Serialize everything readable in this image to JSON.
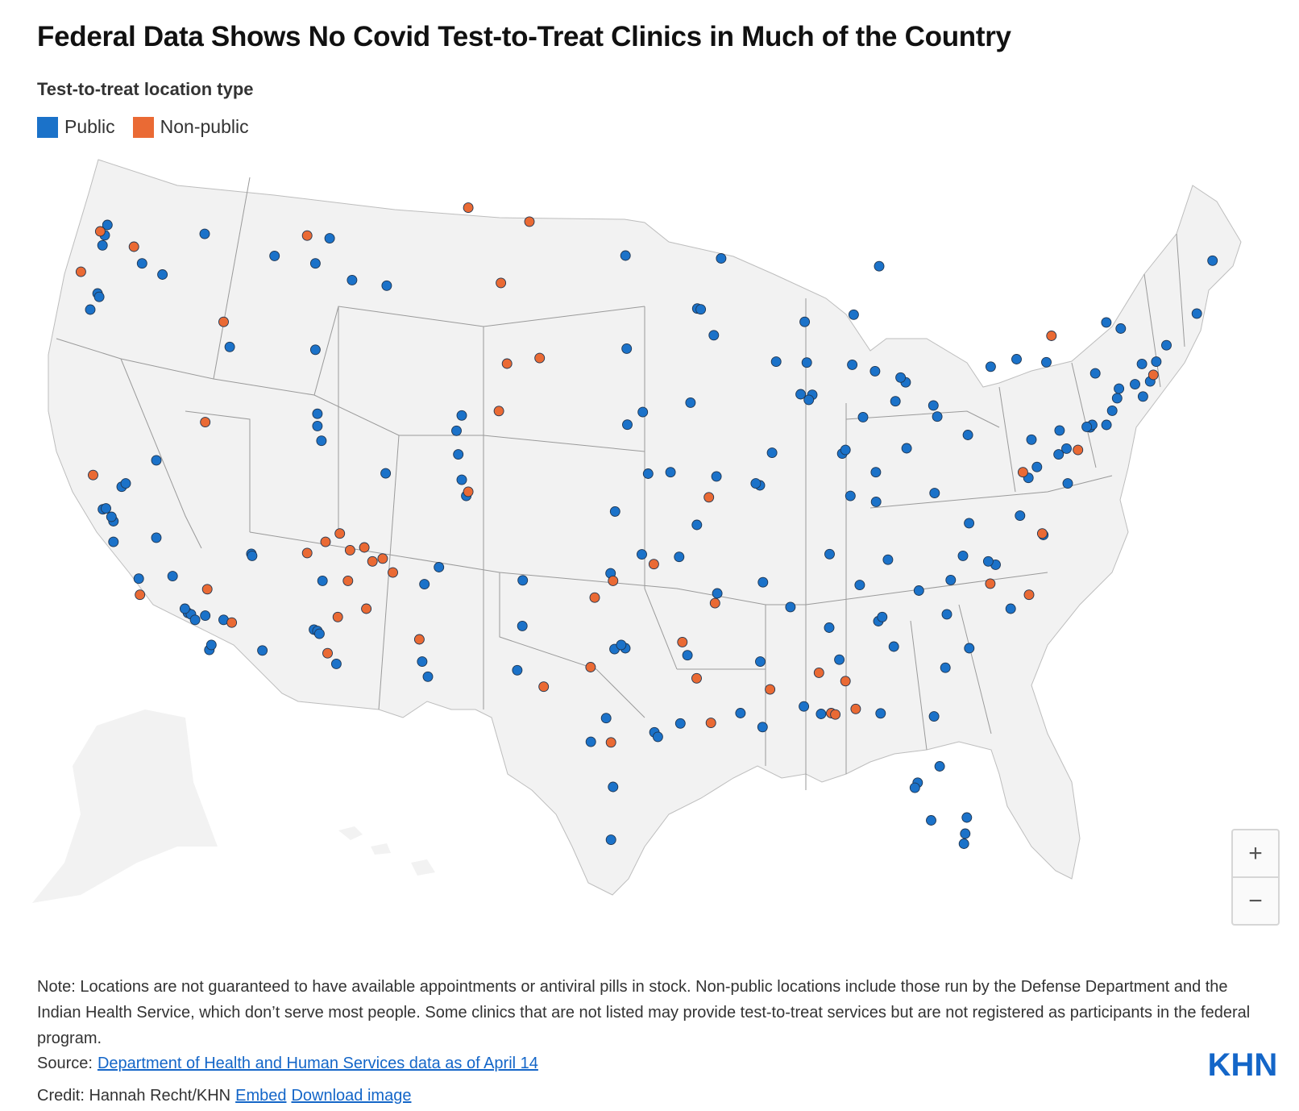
{
  "title": "Federal Data Shows No Covid Test-to-Treat Clinics in Much of the Country",
  "legend": {
    "heading": "Test-to-treat location type",
    "items": [
      {
        "label": "Public",
        "color": "#1b72c9"
      },
      {
        "label": "Non-public",
        "color": "#ea6a34"
      }
    ]
  },
  "zoom": {
    "in_label": "+",
    "out_label": "−"
  },
  "note": "Note: Locations are not guaranteed to have available appointments or antiviral pills in stock. Non-public locations include those run by the Defense Department and the Indian Health Service, which don’t serve most people. Some clinics that are not listed may provide test-to-treat services but are not registered as participants in the federal program.",
  "source": {
    "label": "Source:",
    "link_text": "Department of Health and Human Services data as of April 14"
  },
  "credit": {
    "label": "Credit: Hannah Recht/KHN",
    "embed_text": "Embed",
    "download_text": "Download image"
  },
  "logo_text": "KHN",
  "colors": {
    "public": "#1b72c9",
    "non_public": "#ea6a34",
    "land": "#f2f2f2",
    "border": "#9a9a9a"
  },
  "chart_data": {
    "type": "scatter",
    "title": "Federal Data Shows No Covid Test-to-Treat Clinics in Much of the Country",
    "subtitle": "Test-to-treat location type",
    "series": [
      {
        "name": "Public",
        "color": "#1b72c9",
        "points": [
          {
            "lon": -122.33,
            "lat": 47.61
          },
          {
            "lon": -122.44,
            "lat": 47.25
          },
          {
            "lon": -122.2,
            "lat": 47.98
          },
          {
            "lon": -122.68,
            "lat": 45.52
          },
          {
            "lon": -122.6,
            "lat": 45.4
          },
          {
            "lon": -123.04,
            "lat": 44.94
          },
          {
            "lon": -117.43,
            "lat": 47.66
          },
          {
            "lon": -119.5,
            "lat": 46.2
          },
          {
            "lon": -120.5,
            "lat": 46.6
          },
          {
            "lon": -116.2,
            "lat": 43.6
          },
          {
            "lon": -112.0,
            "lat": 43.5
          },
          {
            "lon": -111.9,
            "lat": 40.76
          },
          {
            "lon": -111.7,
            "lat": 40.23
          },
          {
            "lon": -111.9,
            "lat": 41.2
          },
          {
            "lon": -112.0,
            "lat": 46.6
          },
          {
            "lon": -108.5,
            "lat": 45.8
          },
          {
            "lon": -114.0,
            "lat": 46.87
          },
          {
            "lon": -111.3,
            "lat": 47.5
          },
          {
            "lon": -110.2,
            "lat": 46.0
          },
          {
            "lon": -122.42,
            "lat": 37.77
          },
          {
            "lon": -122.27,
            "lat": 37.8
          },
          {
            "lon": -121.9,
            "lat": 37.34
          },
          {
            "lon": -122.0,
            "lat": 37.5
          },
          {
            "lon": -121.5,
            "lat": 38.58
          },
          {
            "lon": -121.3,
            "lat": 38.7
          },
          {
            "lon": -119.8,
            "lat": 36.75
          },
          {
            "lon": -119.0,
            "lat": 35.37
          },
          {
            "lon": -118.25,
            "lat": 34.05
          },
          {
            "lon": -118.1,
            "lat": 34.0
          },
          {
            "lon": -117.9,
            "lat": 33.8
          },
          {
            "lon": -118.4,
            "lat": 34.2
          },
          {
            "lon": -117.4,
            "lat": 33.95
          },
          {
            "lon": -117.2,
            "lat": 32.72
          },
          {
            "lon": -117.1,
            "lat": 32.9
          },
          {
            "lon": -116.5,
            "lat": 33.8
          },
          {
            "lon": -120.66,
            "lat": 35.28
          },
          {
            "lon": -121.9,
            "lat": 36.6
          },
          {
            "lon": -119.8,
            "lat": 39.53
          },
          {
            "lon": -115.14,
            "lat": 36.17
          },
          {
            "lon": -115.1,
            "lat": 36.1
          },
          {
            "lon": -112.07,
            "lat": 33.45
          },
          {
            "lon": -111.9,
            "lat": 33.4
          },
          {
            "lon": -111.8,
            "lat": 33.3
          },
          {
            "lon": -110.97,
            "lat": 32.22
          },
          {
            "lon": -114.6,
            "lat": 32.7
          },
          {
            "lon": -111.65,
            "lat": 35.2
          },
          {
            "lon": -106.65,
            "lat": 35.08
          },
          {
            "lon": -105.94,
            "lat": 35.69
          },
          {
            "lon": -106.76,
            "lat": 32.3
          },
          {
            "lon": -104.99,
            "lat": 39.74
          },
          {
            "lon": -104.82,
            "lat": 38.83
          },
          {
            "lon": -105.08,
            "lat": 40.59
          },
          {
            "lon": -104.6,
            "lat": 38.25
          },
          {
            "lon": -108.55,
            "lat": 39.06
          },
          {
            "lon": -104.82,
            "lat": 41.14
          },
          {
            "lon": -106.48,
            "lat": 31.76
          },
          {
            "lon": -101.85,
            "lat": 33.58
          },
          {
            "lon": -101.83,
            "lat": 35.22
          },
          {
            "lon": -102.1,
            "lat": 31.99
          },
          {
            "lon": -97.33,
            "lat": 32.75
          },
          {
            "lon": -96.8,
            "lat": 32.78
          },
          {
            "lon": -97.0,
            "lat": 32.9
          },
          {
            "lon": -97.74,
            "lat": 30.27
          },
          {
            "lon": -98.49,
            "lat": 29.42
          },
          {
            "lon": -95.37,
            "lat": 29.76
          },
          {
            "lon": -95.2,
            "lat": 29.6
          },
          {
            "lon": -97.4,
            "lat": 27.8
          },
          {
            "lon": -97.5,
            "lat": 25.9
          },
          {
            "lon": -94.1,
            "lat": 30.08
          },
          {
            "lon": -97.52,
            "lat": 35.47
          },
          {
            "lon": -95.99,
            "lat": 36.15
          },
          {
            "lon": -97.3,
            "lat": 37.69
          },
          {
            "lon": -95.68,
            "lat": 39.05
          },
          {
            "lon": -94.58,
            "lat": 39.1
          },
          {
            "lon": -96.7,
            "lat": 40.81
          },
          {
            "lon": -95.94,
            "lat": 41.26
          },
          {
            "lon": -93.6,
            "lat": 41.6
          },
          {
            "lon": -96.73,
            "lat": 43.54
          },
          {
            "lon": -96.79,
            "lat": 46.88
          },
          {
            "lon": -93.27,
            "lat": 44.98
          },
          {
            "lon": -93.1,
            "lat": 44.95
          },
          {
            "lon": -92.1,
            "lat": 46.78
          },
          {
            "lon": -92.46,
            "lat": 44.02
          },
          {
            "lon": -87.9,
            "lat": 43.04
          },
          {
            "lon": -89.4,
            "lat": 43.07
          },
          {
            "lon": -88.0,
            "lat": 44.5
          },
          {
            "lon": -87.63,
            "lat": 41.88
          },
          {
            "lon": -87.8,
            "lat": 41.7
          },
          {
            "lon": -88.2,
            "lat": 41.9
          },
          {
            "lon": -89.6,
            "lat": 39.8
          },
          {
            "lon": -90.2,
            "lat": 38.63
          },
          {
            "lon": -90.4,
            "lat": 38.7
          },
          {
            "lon": -92.33,
            "lat": 38.95
          },
          {
            "lon": -93.29,
            "lat": 37.21
          },
          {
            "lon": -86.16,
            "lat": 39.77
          },
          {
            "lon": -86.0,
            "lat": 39.9
          },
          {
            "lon": -85.14,
            "lat": 41.08
          },
          {
            "lon": -84.51,
            "lat": 39.1
          },
          {
            "lon": -83.0,
            "lat": 39.96
          },
          {
            "lon": -81.69,
            "lat": 41.5
          },
          {
            "lon": -81.5,
            "lat": 41.1
          },
          {
            "lon": -83.55,
            "lat": 41.65
          },
          {
            "lon": -83.05,
            "lat": 42.33
          },
          {
            "lon": -83.3,
            "lat": 42.5
          },
          {
            "lon": -85.67,
            "lat": 42.96
          },
          {
            "lon": -84.55,
            "lat": 42.73
          },
          {
            "lon": -84.35,
            "lat": 46.5
          },
          {
            "lon": -85.6,
            "lat": 44.76
          },
          {
            "lon": -80.0,
            "lat": 40.44
          },
          {
            "lon": -85.76,
            "lat": 38.25
          },
          {
            "lon": -84.5,
            "lat": 38.04
          },
          {
            "lon": -86.78,
            "lat": 36.16
          },
          {
            "lon": -83.92,
            "lat": 35.96
          },
          {
            "lon": -85.3,
            "lat": 35.05
          },
          {
            "lon": -90.05,
            "lat": 35.15
          },
          {
            "lon": -92.29,
            "lat": 34.75
          },
          {
            "lon": -94.16,
            "lat": 36.06
          },
          {
            "lon": -90.18,
            "lat": 32.3
          },
          {
            "lon": -88.7,
            "lat": 34.26
          },
          {
            "lon": -86.8,
            "lat": 33.52
          },
          {
            "lon": -86.3,
            "lat": 32.37
          },
          {
            "lon": -88.04,
            "lat": 30.69
          },
          {
            "lon": -84.39,
            "lat": 33.75
          },
          {
            "lon": -84.2,
            "lat": 33.9
          },
          {
            "lon": -81.1,
            "lat": 32.08
          },
          {
            "lon": -83.63,
            "lat": 32.84
          },
          {
            "lon": -81.66,
            "lat": 30.33
          },
          {
            "lon": -82.46,
            "lat": 27.95
          },
          {
            "lon": -82.6,
            "lat": 27.77
          },
          {
            "lon": -81.38,
            "lat": 28.54
          },
          {
            "lon": -80.19,
            "lat": 25.76
          },
          {
            "lon": -80.13,
            "lat": 26.12
          },
          {
            "lon": -80.05,
            "lat": 26.7
          },
          {
            "lon": -81.8,
            "lat": 26.6
          },
          {
            "lon": -84.28,
            "lat": 30.44
          },
          {
            "lon": -87.2,
            "lat": 30.42
          },
          {
            "lon": -90.07,
            "lat": 29.95
          },
          {
            "lon": -91.15,
            "lat": 30.45
          },
          {
            "lon": -93.75,
            "lat": 32.53
          },
          {
            "lon": -80.84,
            "lat": 35.23
          },
          {
            "lon": -78.64,
            "lat": 35.78
          },
          {
            "lon": -79.0,
            "lat": 35.9
          },
          {
            "lon": -80.24,
            "lat": 36.1
          },
          {
            "lon": -77.9,
            "lat": 34.2
          },
          {
            "lon": -79.93,
            "lat": 32.78
          },
          {
            "lon": -81.03,
            "lat": 34.0
          },
          {
            "lon": -82.4,
            "lat": 34.85
          },
          {
            "lon": -77.44,
            "lat": 37.54
          },
          {
            "lon": -76.3,
            "lat": 36.85
          },
          {
            "lon": -79.94,
            "lat": 37.27
          },
          {
            "lon": -81.63,
            "lat": 38.35
          },
          {
            "lon": -77.03,
            "lat": 38.9
          },
          {
            "lon": -76.61,
            "lat": 39.29
          },
          {
            "lon": -75.16,
            "lat": 39.95
          },
          {
            "lon": -74.0,
            "lat": 40.71
          },
          {
            "lon": -73.9,
            "lat": 40.8
          },
          {
            "lon": -74.17,
            "lat": 40.73
          },
          {
            "lon": -73.2,
            "lat": 40.8
          },
          {
            "lon": -76.88,
            "lat": 40.27
          },
          {
            "lon": -75.5,
            "lat": 40.6
          },
          {
            "lon": -73.75,
            "lat": 42.65
          },
          {
            "lon": -76.15,
            "lat": 43.05
          },
          {
            "lon": -77.61,
            "lat": 43.16
          },
          {
            "lon": -78.88,
            "lat": 42.89
          },
          {
            "lon": -72.92,
            "lat": 41.31
          },
          {
            "lon": -72.68,
            "lat": 41.76
          },
          {
            "lon": -71.41,
            "lat": 41.82
          },
          {
            "lon": -71.06,
            "lat": 42.36
          },
          {
            "lon": -71.8,
            "lat": 42.26
          },
          {
            "lon": -72.59,
            "lat": 42.1
          },
          {
            "lon": -71.46,
            "lat": 42.99
          },
          {
            "lon": -70.76,
            "lat": 43.07
          },
          {
            "lon": -70.26,
            "lat": 43.66
          },
          {
            "lon": -68.77,
            "lat": 44.8
          },
          {
            "lon": -68.0,
            "lat": 46.7
          },
          {
            "lon": -73.21,
            "lat": 44.48
          },
          {
            "lon": -72.5,
            "lat": 44.26
          },
          {
            "lon": -75.55,
            "lat": 39.74
          },
          {
            "lon": -75.1,
            "lat": 38.7
          }
        ]
      },
      {
        "name": "Non-public",
        "color": "#ea6a34",
        "points": [
          {
            "lon": -122.55,
            "lat": 47.75
          },
          {
            "lon": -120.9,
            "lat": 47.2
          },
          {
            "lon": -123.5,
            "lat": 46.3
          },
          {
            "lon": -116.5,
            "lat": 44.5
          },
          {
            "lon": -112.4,
            "lat": 47.6
          },
          {
            "lon": -104.5,
            "lat": 48.6
          },
          {
            "lon": -101.5,
            "lat": 48.1
          },
          {
            "lon": -102.9,
            "lat": 45.9
          },
          {
            "lon": -102.6,
            "lat": 43.0
          },
          {
            "lon": -101.0,
            "lat": 43.2
          },
          {
            "lon": -117.4,
            "lat": 40.9
          },
          {
            "lon": -122.9,
            "lat": 39.0
          },
          {
            "lon": -120.6,
            "lat": 34.7
          },
          {
            "lon": -117.3,
            "lat": 34.9
          },
          {
            "lon": -116.1,
            "lat": 33.7
          },
          {
            "lon": -112.4,
            "lat": 36.2
          },
          {
            "lon": -111.5,
            "lat": 36.6
          },
          {
            "lon": -110.8,
            "lat": 36.9
          },
          {
            "lon": -110.3,
            "lat": 36.3
          },
          {
            "lon": -109.6,
            "lat": 36.4
          },
          {
            "lon": -109.2,
            "lat": 35.9
          },
          {
            "lon": -108.7,
            "lat": 36.0
          },
          {
            "lon": -108.2,
            "lat": 35.5
          },
          {
            "lon": -110.4,
            "lat": 35.2
          },
          {
            "lon": -110.9,
            "lat": 33.9
          },
          {
            "lon": -109.5,
            "lat": 34.2
          },
          {
            "lon": -111.4,
            "lat": 32.6
          },
          {
            "lon": -106.9,
            "lat": 33.1
          },
          {
            "lon": -104.5,
            "lat": 38.4
          },
          {
            "lon": -103.0,
            "lat": 41.3
          },
          {
            "lon": -98.5,
            "lat": 32.1
          },
          {
            "lon": -100.8,
            "lat": 31.4
          },
          {
            "lon": -98.3,
            "lat": 34.6
          },
          {
            "lon": -97.4,
            "lat": 35.2
          },
          {
            "lon": -95.4,
            "lat": 35.8
          },
          {
            "lon": -92.7,
            "lat": 38.2
          },
          {
            "lon": -92.4,
            "lat": 34.4
          },
          {
            "lon": -93.3,
            "lat": 31.7
          },
          {
            "lon": -89.7,
            "lat": 31.3
          },
          {
            "lon": -87.3,
            "lat": 31.9
          },
          {
            "lon": -86.0,
            "lat": 31.6
          },
          {
            "lon": -86.7,
            "lat": 30.45
          },
          {
            "lon": -86.5,
            "lat": 30.4
          },
          {
            "lon": -85.5,
            "lat": 30.6
          },
          {
            "lon": -92.6,
            "lat": 30.1
          },
          {
            "lon": -77.0,
            "lat": 34.7
          },
          {
            "lon": -76.35,
            "lat": 36.9
          },
          {
            "lon": -77.3,
            "lat": 39.1
          },
          {
            "lon": -74.6,
            "lat": 39.9
          },
          {
            "lon": -75.9,
            "lat": 44.0
          },
          {
            "lon": -70.9,
            "lat": 42.6
          },
          {
            "lon": -97.5,
            "lat": 29.4
          },
          {
            "lon": -94.0,
            "lat": 33.0
          },
          {
            "lon": -78.9,
            "lat": 35.1
          }
        ]
      }
    ]
  }
}
